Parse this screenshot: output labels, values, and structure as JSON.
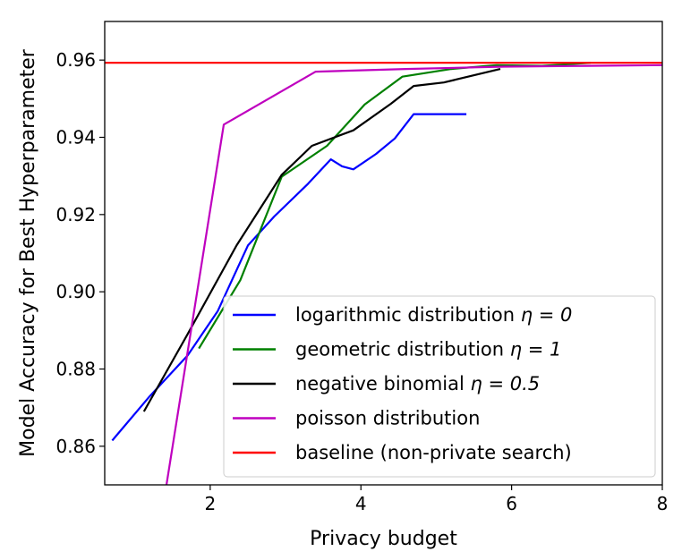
{
  "chart_data": {
    "type": "line",
    "title": "",
    "xlabel": "Privacy budget",
    "ylabel": "Model Accuracy for Best Hyperparameter",
    "xlim": [
      0.6,
      8.0
    ],
    "ylim": [
      0.85,
      0.97
    ],
    "xticks": [
      2,
      4,
      6,
      8
    ],
    "xtick_labels": [
      "2",
      "4",
      "6",
      "8"
    ],
    "yticks": [
      0.86,
      0.88,
      0.9,
      0.92,
      0.94,
      0.96
    ],
    "ytick_labels": [
      "0.86",
      "0.88",
      "0.90",
      "0.92",
      "0.94",
      "0.96"
    ],
    "grid": false,
    "legend_position": "lower-right",
    "series": [
      {
        "name": "logarithmic distribution",
        "eta": "η = 0",
        "color": "#0000ff",
        "x": [
          0.7,
          1.2,
          1.7,
          2.1,
          2.5,
          2.85,
          3.3,
          3.6,
          3.75,
          3.9,
          4.2,
          4.45,
          4.7,
          5.0,
          5.4
        ],
        "y": [
          0.8615,
          0.873,
          0.8835,
          0.895,
          0.912,
          0.9195,
          0.928,
          0.9343,
          0.9325,
          0.9317,
          0.9357,
          0.9397,
          0.946,
          0.946,
          0.946
        ]
      },
      {
        "name": "geometric distribution",
        "eta": "η = 1",
        "color": "#008000",
        "x": [
          1.85,
          2.4,
          2.95,
          3.55,
          4.05,
          4.55,
          5.2,
          5.8,
          6.4,
          7.05
        ],
        "y": [
          0.8853,
          0.903,
          0.9298,
          0.9378,
          0.9485,
          0.9557,
          0.9577,
          0.9587,
          0.9585,
          0.9593
        ]
      },
      {
        "name": "negative binomial",
        "eta": "η = 0.5",
        "color": "#000000",
        "x": [
          1.12,
          1.7,
          2.35,
          2.95,
          3.35,
          3.9,
          4.4,
          4.7,
          5.1,
          5.85
        ],
        "y": [
          0.869,
          0.889,
          0.912,
          0.9303,
          0.9378,
          0.9418,
          0.9487,
          0.9533,
          0.9542,
          0.9577
        ]
      },
      {
        "name": "poisson distribution",
        "eta": "",
        "color": "#bf00bf",
        "x": [
          1.42,
          2.18,
          3.4,
          4.6,
          5.9,
          7.0,
          8.0
        ],
        "y": [
          0.85,
          0.9433,
          0.957,
          0.9577,
          0.9583,
          0.9585,
          0.9587
        ]
      },
      {
        "name": "baseline (non-private search)",
        "eta": "",
        "color": "#ff0000",
        "x": [
          0.6,
          8.0
        ],
        "y": [
          0.9593,
          0.9593
        ]
      }
    ]
  }
}
